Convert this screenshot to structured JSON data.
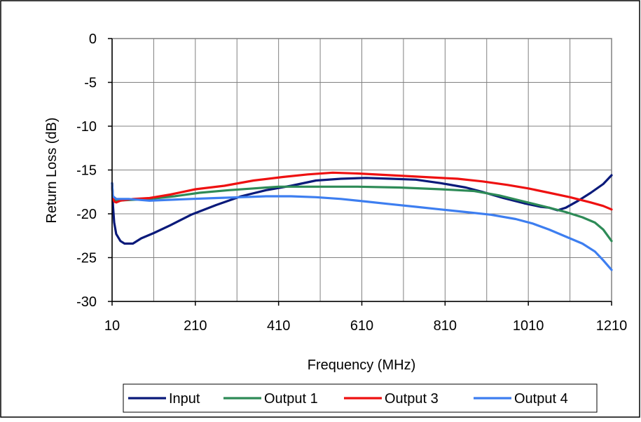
{
  "chart_data": {
    "type": "line",
    "title": "",
    "xlabel": "Frequency (MHz)",
    "ylabel": "Return Loss (dB)",
    "xlim": [
      10,
      1210
    ],
    "ylim": [
      -30,
      0
    ],
    "x_ticks": [
      "10",
      "210",
      "410",
      "610",
      "810",
      "1010",
      "1210"
    ],
    "y_ticks": [
      "0",
      "-5",
      "-10",
      "-15",
      "-20",
      "-25",
      "-30"
    ],
    "x_grid_step": 100,
    "y_grid_step": 5,
    "grid": true,
    "legend_position": "bottom",
    "series": [
      {
        "name": "Input",
        "color": "#0a1a7a",
        "points": [
          [
            10,
            -16.5
          ],
          [
            12,
            -19
          ],
          [
            15,
            -21
          ],
          [
            20,
            -22.3
          ],
          [
            30,
            -23.1
          ],
          [
            40,
            -23.4
          ],
          [
            60,
            -23.4
          ],
          [
            80,
            -22.8
          ],
          [
            110,
            -22.2
          ],
          [
            150,
            -21.3
          ],
          [
            200,
            -20.1
          ],
          [
            260,
            -19
          ],
          [
            320,
            -18
          ],
          [
            380,
            -17.3
          ],
          [
            440,
            -16.8
          ],
          [
            500,
            -16.2
          ],
          [
            560,
            -16
          ],
          [
            620,
            -15.9
          ],
          [
            680,
            -16
          ],
          [
            740,
            -16.1
          ],
          [
            800,
            -16.5
          ],
          [
            860,
            -17
          ],
          [
            900,
            -17.5
          ],
          [
            950,
            -18.2
          ],
          [
            1000,
            -18.8
          ],
          [
            1040,
            -19.2
          ],
          [
            1060,
            -19.3
          ],
          [
            1080,
            -19.6
          ],
          [
            1100,
            -19.3
          ],
          [
            1130,
            -18.5
          ],
          [
            1160,
            -17.6
          ],
          [
            1190,
            -16.6
          ],
          [
            1210,
            -15.6
          ]
        ]
      },
      {
        "name": "Output 1",
        "color": "#2e8b57",
        "points": [
          [
            10,
            -16.5
          ],
          [
            12,
            -18.4
          ],
          [
            20,
            -18.5
          ],
          [
            60,
            -18.4
          ],
          [
            100,
            -18.3
          ],
          [
            160,
            -18
          ],
          [
            220,
            -17.6
          ],
          [
            290,
            -17.3
          ],
          [
            350,
            -17.1
          ],
          [
            410,
            -16.9
          ],
          [
            500,
            -16.9
          ],
          [
            600,
            -16.9
          ],
          [
            700,
            -17
          ],
          [
            800,
            -17.2
          ],
          [
            880,
            -17.4
          ],
          [
            940,
            -17.9
          ],
          [
            1000,
            -18.6
          ],
          [
            1060,
            -19.3
          ],
          [
            1100,
            -19.8
          ],
          [
            1140,
            -20.4
          ],
          [
            1170,
            -21
          ],
          [
            1190,
            -21.8
          ],
          [
            1210,
            -23.1
          ]
        ]
      },
      {
        "name": "Output 3",
        "color": "#ee1111",
        "points": [
          [
            10,
            -16.5
          ],
          [
            12,
            -18.2
          ],
          [
            15,
            -18.6
          ],
          [
            20,
            -18.7
          ],
          [
            30,
            -18.5
          ],
          [
            60,
            -18.3
          ],
          [
            100,
            -18.2
          ],
          [
            150,
            -17.8
          ],
          [
            210,
            -17.2
          ],
          [
            280,
            -16.8
          ],
          [
            350,
            -16.2
          ],
          [
            420,
            -15.8
          ],
          [
            480,
            -15.5
          ],
          [
            540,
            -15.3
          ],
          [
            600,
            -15.4
          ],
          [
            680,
            -15.6
          ],
          [
            760,
            -15.8
          ],
          [
            840,
            -16
          ],
          [
            900,
            -16.3
          ],
          [
            960,
            -16.7
          ],
          [
            1010,
            -17.1
          ],
          [
            1060,
            -17.6
          ],
          [
            1110,
            -18.1
          ],
          [
            1160,
            -18.7
          ],
          [
            1190,
            -19.1
          ],
          [
            1210,
            -19.5
          ]
        ]
      },
      {
        "name": "Output 4",
        "color": "#3d7ef0",
        "points": [
          [
            10,
            -16.5
          ],
          [
            12,
            -18
          ],
          [
            20,
            -18.3
          ],
          [
            50,
            -18.3
          ],
          [
            100,
            -18.5
          ],
          [
            150,
            -18.4
          ],
          [
            200,
            -18.3
          ],
          [
            260,
            -18.2
          ],
          [
            320,
            -18.1
          ],
          [
            380,
            -18
          ],
          [
            440,
            -18
          ],
          [
            500,
            -18.1
          ],
          [
            560,
            -18.3
          ],
          [
            620,
            -18.6
          ],
          [
            680,
            -18.9
          ],
          [
            740,
            -19.2
          ],
          [
            800,
            -19.5
          ],
          [
            860,
            -19.8
          ],
          [
            920,
            -20.1
          ],
          [
            980,
            -20.6
          ],
          [
            1020,
            -21.1
          ],
          [
            1060,
            -21.8
          ],
          [
            1100,
            -22.6
          ],
          [
            1140,
            -23.4
          ],
          [
            1170,
            -24.3
          ],
          [
            1190,
            -25.3
          ],
          [
            1210,
            -26.4
          ]
        ]
      }
    ]
  }
}
